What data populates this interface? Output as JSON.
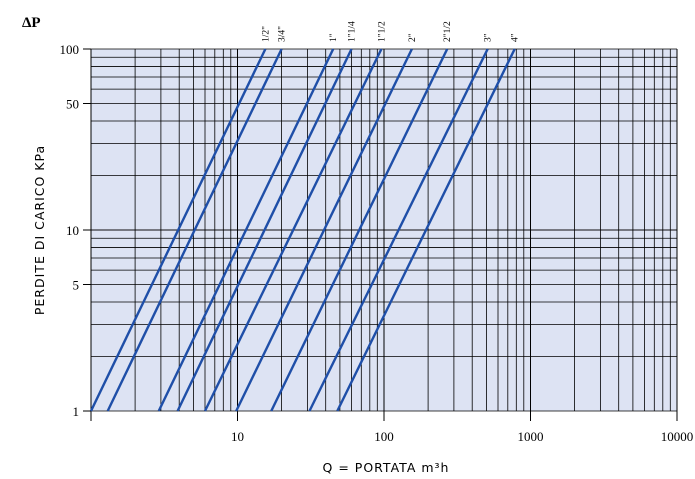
{
  "chart_data": {
    "type": "line",
    "title": "ΔP",
    "xlabel": "Q = PORTATA m³h",
    "ylabel": "PERDITE DI CARICO KPa",
    "x_scale": "log",
    "y_scale": "log",
    "xlim": [
      1,
      10000
    ],
    "ylim": [
      1,
      100
    ],
    "x_tick_labels": [
      "10",
      "100",
      "1000",
      "10000"
    ],
    "y_tick_labels": [
      "1",
      "5",
      "10",
      "50",
      "100"
    ],
    "grid": true,
    "colors": {
      "plot_background": "#dde3f3",
      "line": "#1f4fa8",
      "grid": "#000000"
    },
    "series": [
      {
        "name": "1/2\"",
        "x": [
          1.0,
          15.5
        ],
        "y": [
          1,
          100
        ]
      },
      {
        "name": "3/4\"",
        "x": [
          1.3,
          20.0
        ],
        "y": [
          1,
          100
        ]
      },
      {
        "name": "1\"",
        "x": [
          2.9,
          45.0
        ],
        "y": [
          1,
          100
        ]
      },
      {
        "name": "1\"1/4",
        "x": [
          3.9,
          60.0
        ],
        "y": [
          1,
          100
        ]
      },
      {
        "name": "1\"1/2",
        "x": [
          6.0,
          96.0
        ],
        "y": [
          1,
          100
        ]
      },
      {
        "name": "2\"",
        "x": [
          9.8,
          155.0
        ],
        "y": [
          1,
          100
        ]
      },
      {
        "name": "2\"1/2",
        "x": [
          17.0,
          270.0
        ],
        "y": [
          1,
          100
        ]
      },
      {
        "name": "3\"",
        "x": [
          31.0,
          510.0
        ],
        "y": [
          1,
          100
        ]
      },
      {
        "name": "4\"",
        "x": [
          48.0,
          780.0
        ],
        "y": [
          1,
          100
        ]
      }
    ]
  }
}
